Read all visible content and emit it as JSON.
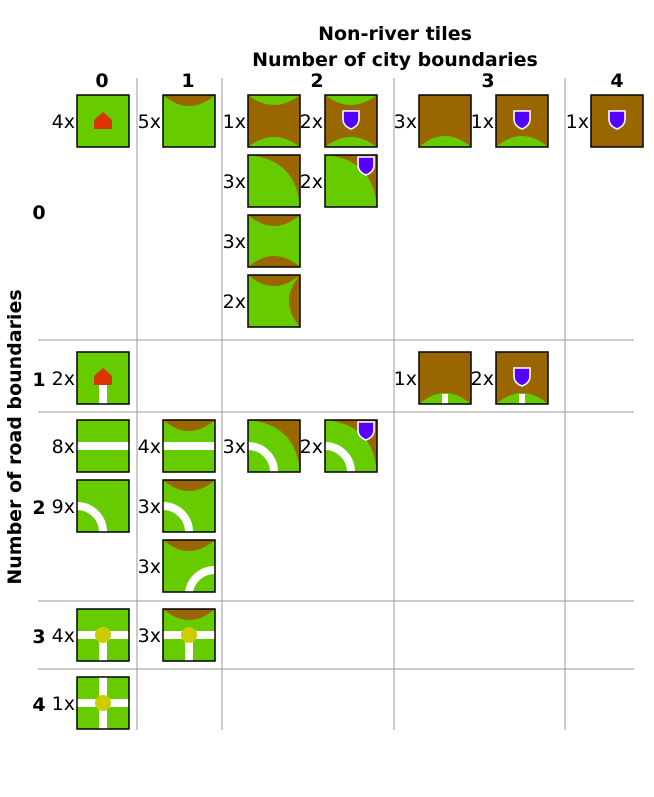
{
  "title": "Non-river tiles",
  "x_axis_title": "Number of city boundaries",
  "y_axis_title": "Number of road boundaries",
  "column_labels": [
    "0",
    "1",
    "2",
    "3",
    "4"
  ],
  "row_labels": [
    "0",
    "1",
    "2",
    "3",
    "4"
  ],
  "colors": {
    "grass": "#66cc00",
    "city": "#996600",
    "shield": "#5500ff",
    "road": "#ffffff",
    "house": "#dd3300",
    "junction": "#cccc00",
    "grid": "#999999"
  },
  "tiles": [
    {
      "col": 0,
      "row": 0,
      "count": "4x",
      "kind": "monastery"
    },
    {
      "col": 1,
      "row": 0,
      "count": "5x",
      "kind": "city-one-edge"
    },
    {
      "col": 2,
      "row": 0,
      "count": "1x",
      "kind": "city-two-opposite-separate"
    },
    {
      "col": 2,
      "row": 0,
      "count": "2x",
      "kind": "city-two-opposite-separate-shield"
    },
    {
      "col": 2,
      "row": 0,
      "count": "3x",
      "kind": "city-corner"
    },
    {
      "col": 2,
      "row": 0,
      "count": "2x",
      "kind": "city-corner-shield"
    },
    {
      "col": 2,
      "row": 0,
      "count": "3x",
      "kind": "city-caps-top-bottom"
    },
    {
      "col": 2,
      "row": 0,
      "count": "2x",
      "kind": "city-caps-top-right"
    },
    {
      "col": 3,
      "row": 0,
      "count": "3x",
      "kind": "city-three-edges"
    },
    {
      "col": 3,
      "row": 0,
      "count": "1x",
      "kind": "city-three-edges-shield"
    },
    {
      "col": 4,
      "row": 0,
      "count": "1x",
      "kind": "city-full-shield"
    },
    {
      "col": 0,
      "row": 1,
      "count": "2x",
      "kind": "monastery-road"
    },
    {
      "col": 3,
      "row": 1,
      "count": "1x",
      "kind": "city-three-edges-road"
    },
    {
      "col": 3,
      "row": 1,
      "count": "2x",
      "kind": "city-three-edges-road-shield"
    },
    {
      "col": 0,
      "row": 2,
      "count": "8x",
      "kind": "road-straight"
    },
    {
      "col": 0,
      "row": 2,
      "count": "9x",
      "kind": "road-curve"
    },
    {
      "col": 1,
      "row": 2,
      "count": "4x",
      "kind": "city-cap-road-straight"
    },
    {
      "col": 1,
      "row": 2,
      "count": "3x",
      "kind": "city-cap-road-curve-left"
    },
    {
      "col": 1,
      "row": 2,
      "count": "3x",
      "kind": "city-cap-road-curve-right"
    },
    {
      "col": 2,
      "row": 2,
      "count": "3x",
      "kind": "city-corner-road-curve"
    },
    {
      "col": 2,
      "row": 2,
      "count": "2x",
      "kind": "city-corner-road-curve-shield"
    },
    {
      "col": 0,
      "row": 3,
      "count": "4x",
      "kind": "road-three-way"
    },
    {
      "col": 1,
      "row": 3,
      "count": "3x",
      "kind": "city-cap-road-three-way"
    },
    {
      "col": 0,
      "row": 4,
      "count": "1x",
      "kind": "road-four-way"
    }
  ]
}
